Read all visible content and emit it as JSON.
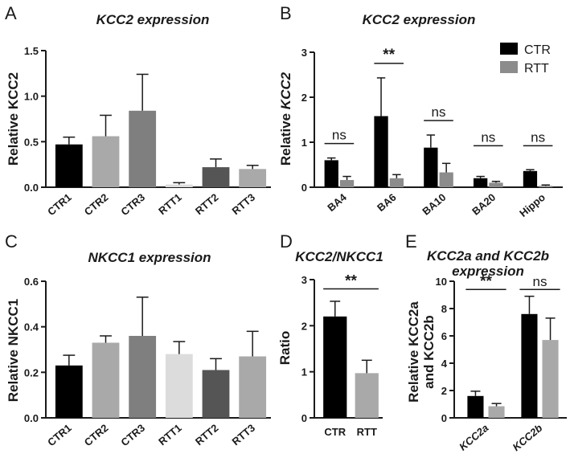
{
  "figure": {
    "panels": [
      "A",
      "B",
      "C",
      "D",
      "E"
    ]
  },
  "chart_data": [
    {
      "panel": "A",
      "type": "bar",
      "title": "KCC2 expression",
      "ylabel": "Relative KCC2",
      "xlabel": "",
      "ylim": [
        0,
        1.5
      ],
      "yticks": [
        0.0,
        0.5,
        1.0,
        1.5
      ],
      "ytick_labels": [
        "0.0",
        "0.5",
        "1.0",
        "1.5"
      ],
      "categories": [
        "CTR1",
        "CTR2",
        "CTR3",
        "RTT1",
        "RTT2",
        "RTT3"
      ],
      "values": [
        0.47,
        0.56,
        0.84,
        0.03,
        0.22,
        0.2
      ],
      "errors": [
        0.08,
        0.23,
        0.4,
        0.02,
        0.09,
        0.04
      ],
      "colors": [
        "#000000",
        "#a9a9a9",
        "#7f7f7f",
        "#dcdcdc",
        "#555555",
        "#a9a9a9"
      ]
    },
    {
      "panel": "B",
      "type": "bar",
      "title": "KCC2 expression",
      "ylabel": "Relative KCC2",
      "ylabel_prefix": "Relative ",
      "ylabel_emph": "KCC2",
      "xlabel": "",
      "ylim": [
        0,
        3
      ],
      "yticks": [
        0,
        1,
        2,
        3
      ],
      "ytick_labels": [
        "0",
        "1",
        "2",
        "3"
      ],
      "categories": [
        "BA4",
        "BA6",
        "BA10",
        "BA20",
        "Hippo"
      ],
      "series": [
        {
          "name": "CTR",
          "color": "#000000",
          "values": [
            0.6,
            1.58,
            0.88,
            0.2,
            0.36
          ],
          "errors": [
            0.05,
            0.85,
            0.28,
            0.04,
            0.03
          ]
        },
        {
          "name": "RTT",
          "color": "#8c8c8c",
          "values": [
            0.16,
            0.2,
            0.33,
            0.1,
            0.03
          ],
          "errors": [
            0.08,
            0.08,
            0.2,
            0.03,
            0.02
          ]
        }
      ],
      "significance": [
        "ns",
        "**",
        "ns",
        "ns",
        "ns"
      ],
      "legend": [
        "CTR",
        "RTT"
      ],
      "legend_position": "top-right"
    },
    {
      "panel": "C",
      "type": "bar",
      "title": "NKCC1 expression",
      "ylabel": "Relative NKCC1",
      "xlabel": "",
      "ylim": [
        0,
        0.6
      ],
      "yticks": [
        0.0,
        0.2,
        0.4,
        0.6
      ],
      "ytick_labels": [
        "0.0",
        "0.2",
        "0.4",
        "0.6"
      ],
      "categories": [
        "CTR1",
        "CTR2",
        "CTR3",
        "RTT1",
        "RTT2",
        "RTT3"
      ],
      "values": [
        0.23,
        0.33,
        0.36,
        0.28,
        0.21,
        0.27
      ],
      "errors": [
        0.045,
        0.03,
        0.17,
        0.055,
        0.05,
        0.11
      ],
      "colors": [
        "#000000",
        "#a9a9a9",
        "#7f7f7f",
        "#dcdcdc",
        "#555555",
        "#a9a9a9"
      ]
    },
    {
      "panel": "D",
      "type": "bar",
      "title": "KCC2/NKCC1",
      "ylabel": "Ratio",
      "xlabel": "",
      "ylim": [
        0,
        3
      ],
      "yticks": [
        0,
        1,
        2,
        3
      ],
      "ytick_labels": [
        "0",
        "1",
        "2",
        "3"
      ],
      "categories": [
        "CTR",
        "RTT"
      ],
      "values": [
        2.2,
        0.97
      ],
      "errors": [
        0.33,
        0.28
      ],
      "colors": [
        "#000000",
        "#a9a9a9"
      ],
      "significance": [
        {
          "from": "CTR",
          "to": "RTT",
          "label": "**"
        }
      ]
    },
    {
      "panel": "E",
      "type": "bar",
      "title": "KCC2a and KCC2b expression",
      "title_lines": [
        "KCC2a and KCC2b",
        "expression"
      ],
      "ylabel": "Relative KCC2a and KCC2b",
      "ylabel_lines": [
        "Relative KCC2a",
        "and KCC2b"
      ],
      "xlabel": "",
      "ylim": [
        0,
        10
      ],
      "yticks": [
        0,
        2,
        4,
        6,
        8,
        10
      ],
      "ytick_labels": [
        "0",
        "2",
        "4",
        "6",
        "8",
        "10"
      ],
      "categories": [
        "KCC2a",
        "KCC2b"
      ],
      "series": [
        {
          "name": "CTR",
          "color": "#000000",
          "values": [
            1.6,
            7.6
          ],
          "errors": [
            0.35,
            1.3
          ]
        },
        {
          "name": "RTT",
          "color": "#a9a9a9",
          "values": [
            0.85,
            5.7
          ],
          "errors": [
            0.2,
            1.6
          ]
        }
      ],
      "significance": [
        "**",
        "ns"
      ]
    }
  ]
}
